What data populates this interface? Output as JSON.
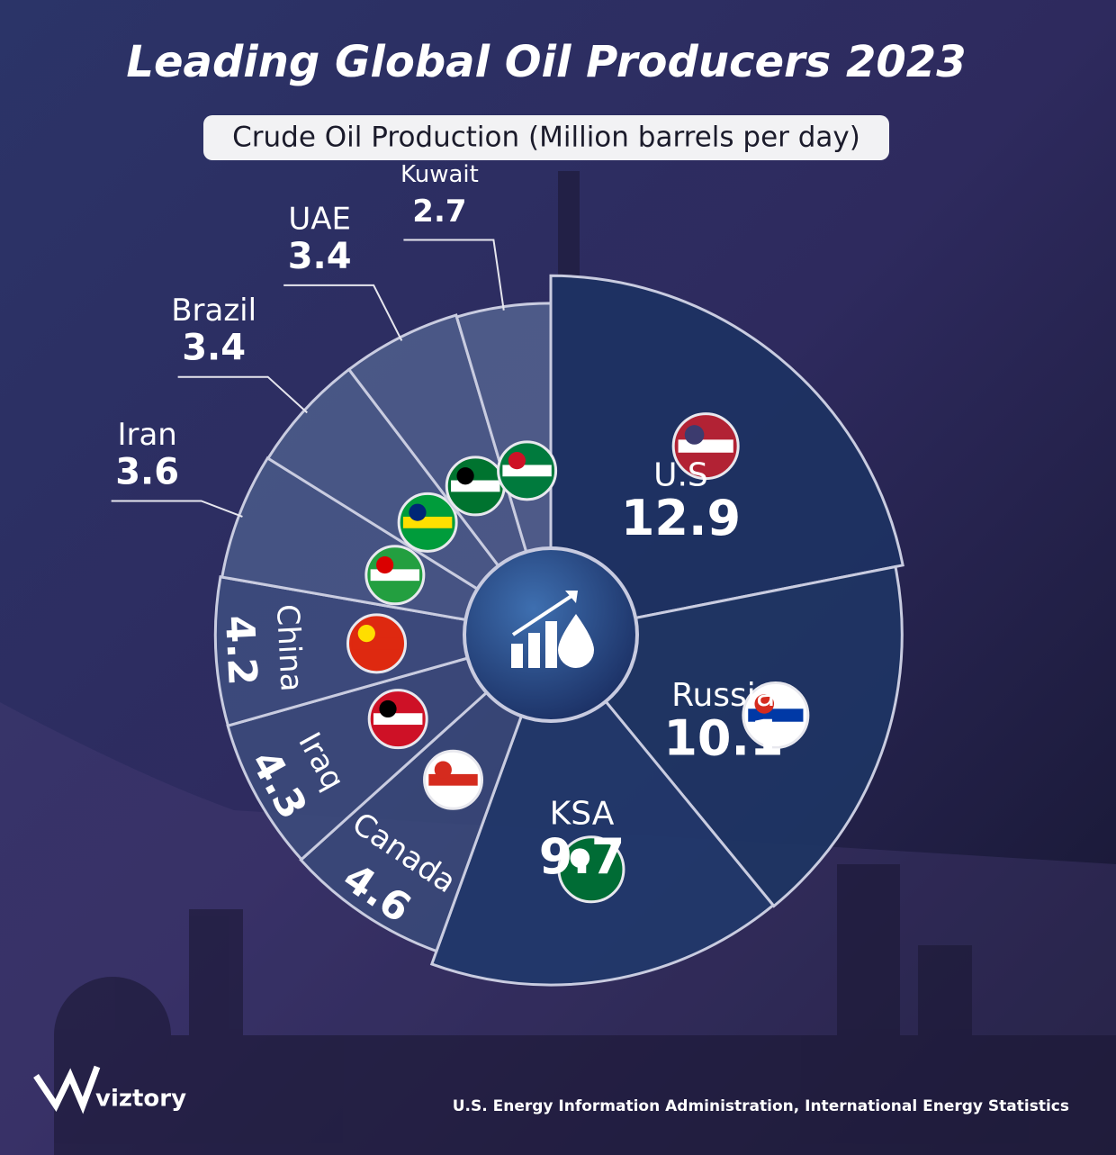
{
  "chart_data": {
    "type": "polar-pie",
    "title": "Leading Global Oil Producers 2023",
    "subtitle": "Crude Oil Production (Million barrels per day)",
    "categories": [
      "U.S",
      "Russia",
      "KSA",
      "Canada",
      "Iraq",
      "China",
      "Iran",
      "Brazil",
      "UAE",
      "Kuwait"
    ],
    "values": [
      12.9,
      10.1,
      9.7,
      4.6,
      4.3,
      4.2,
      3.6,
      3.4,
      3.4,
      2.7
    ],
    "colors": [
      "#1d3262",
      "#1f3563",
      "#22386a",
      "#3a4a7a",
      "#3c4c7c",
      "#3e4f80",
      "#4a5b8a",
      "#4d5e8c",
      "#505f8d",
      "#54638f"
    ],
    "source": "U.S. Energy Information Administration, International Energy Statistics",
    "brand": "viztory"
  }
}
